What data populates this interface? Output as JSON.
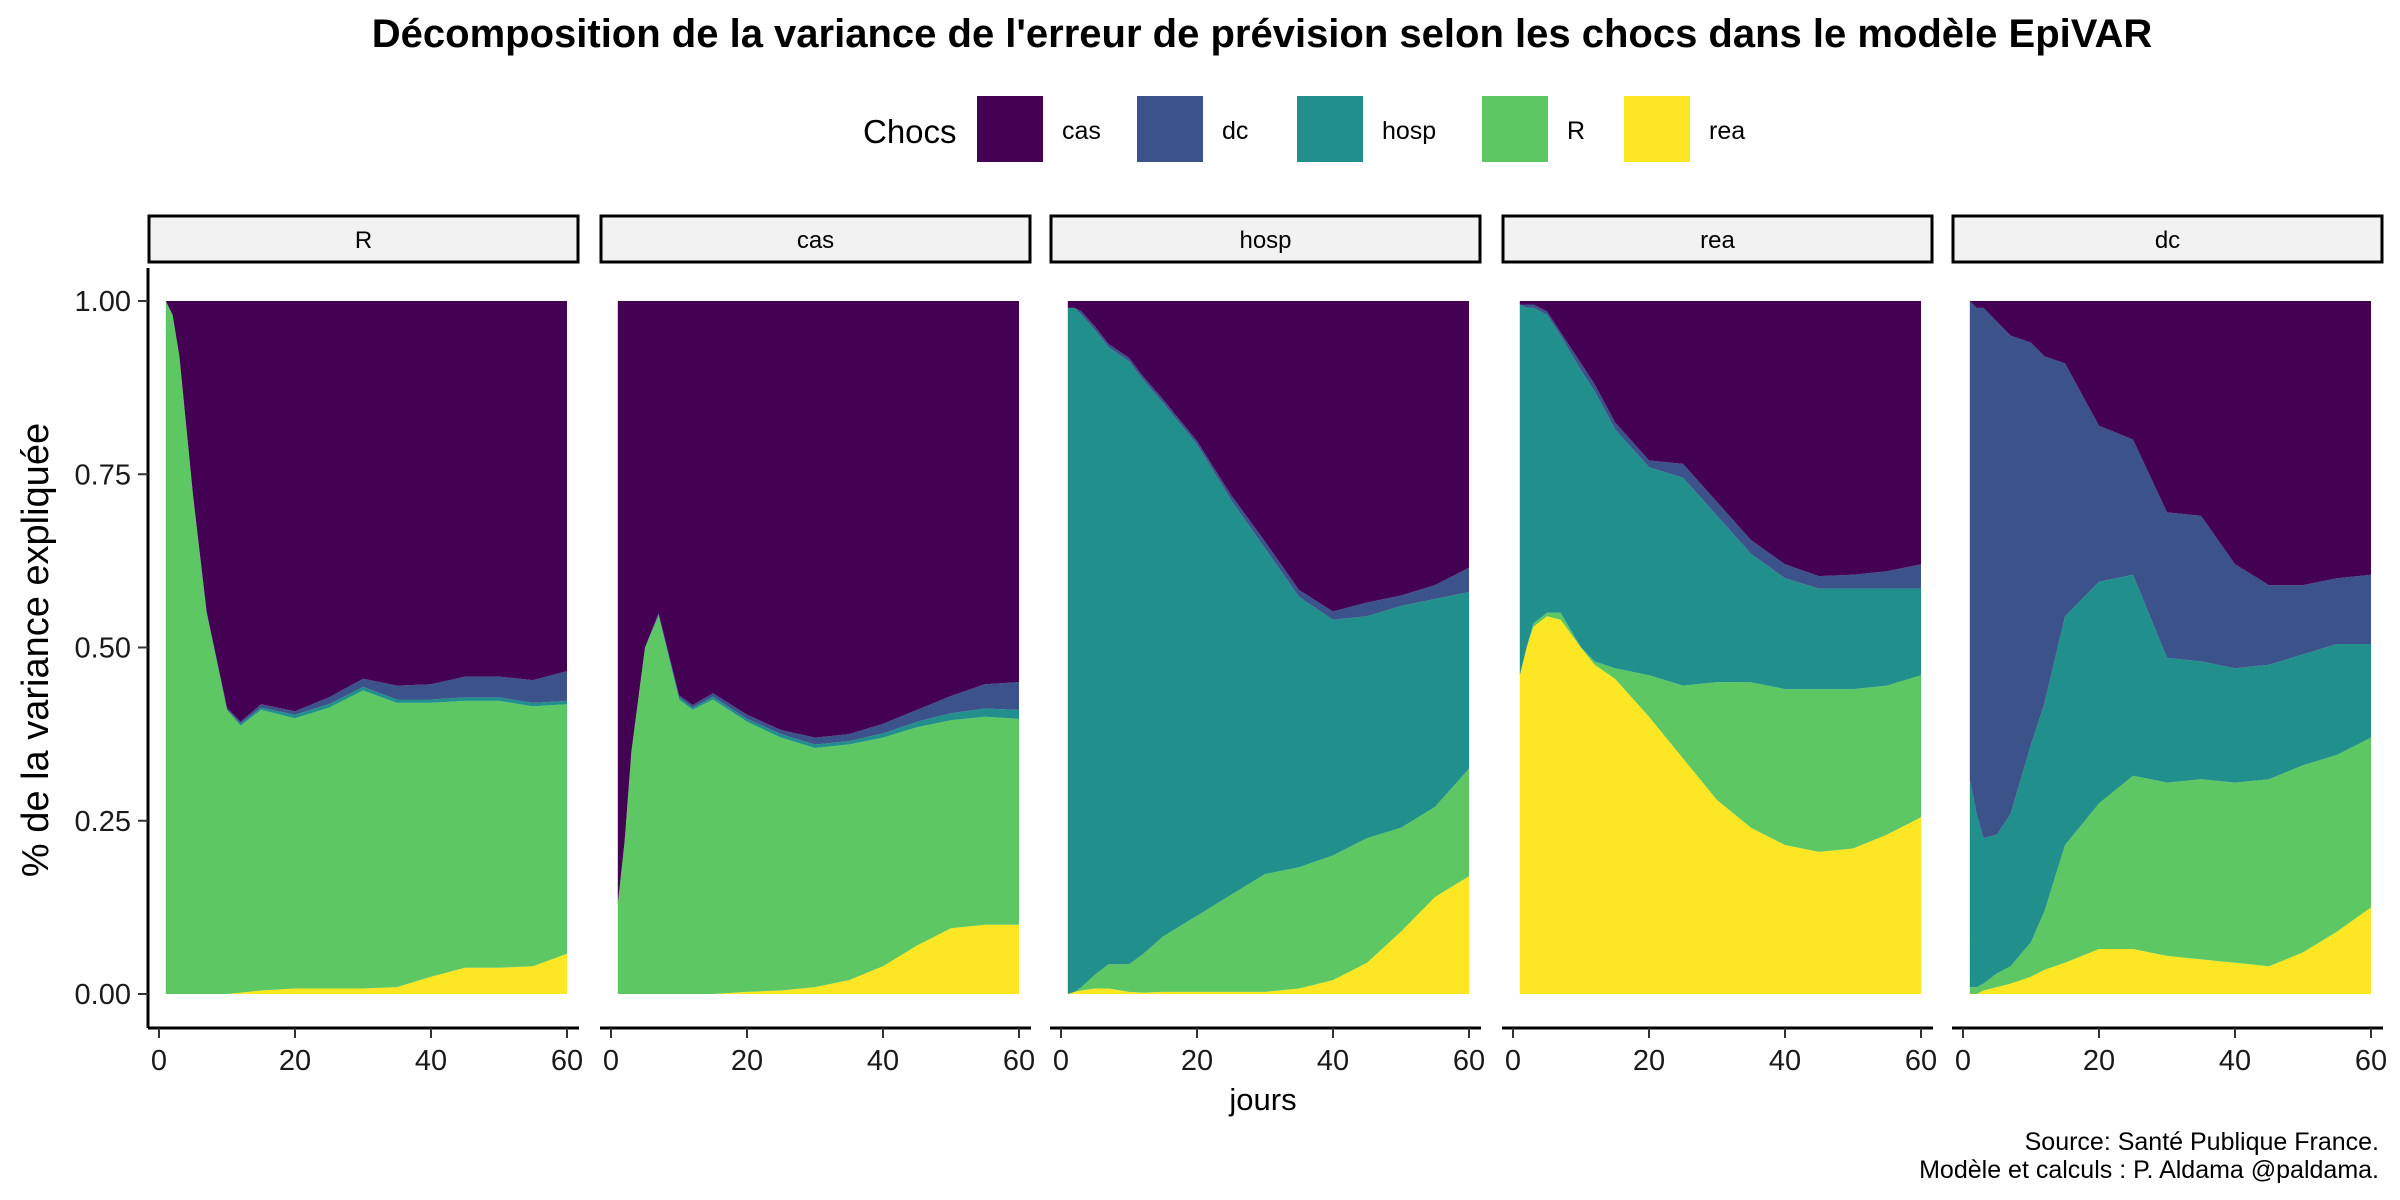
{
  "chart_data": {
    "type": "area",
    "title": "Décomposition de la variance de l'erreur de prévision selon les chocs dans le modèle EpiVAR",
    "xlabel": "jours",
    "ylabel": "% de la variance expliquée",
    "xlim": [
      0,
      60
    ],
    "ylim": [
      0,
      1
    ],
    "x_ticks": [
      0,
      20,
      40,
      60
    ],
    "y_ticks": [
      0,
      0.25,
      0.5,
      0.75,
      1.0
    ],
    "y_tick_labels": [
      "0.00",
      "0.25",
      "0.50",
      "0.75",
      "1.00"
    ],
    "stacked": true,
    "legend": {
      "title": "Chocs",
      "position": "top",
      "entries": [
        "cas",
        "dc",
        "hosp",
        "R",
        "rea"
      ]
    },
    "series_colors": {
      "cas": "#440154",
      "dc": "#3B528B",
      "hosp": "#21908C",
      "R": "#5DC863",
      "rea": "#FDE725"
    },
    "stack_order_bottom_to_top": [
      "rea",
      "R",
      "hosp",
      "dc",
      "cas"
    ],
    "x": [
      1,
      2,
      3,
      5,
      7,
      10,
      12,
      15,
      20,
      25,
      30,
      35,
      40,
      45,
      50,
      55,
      60
    ],
    "panels": [
      {
        "label": "R",
        "series": [
          {
            "name": "rea",
            "values": [
              0,
              0,
              0,
              0,
              0,
              0,
              0.002,
              0.005,
              0.008,
              0.008,
              0.008,
              0.01,
              0.025,
              0.038,
              0.038,
              0.04,
              0.058
            ]
          },
          {
            "name": "R",
            "values": [
              1.0,
              0.98,
              0.92,
              0.72,
              0.55,
              0.41,
              0.385,
              0.405,
              0.39,
              0.405,
              0.43,
              0.41,
              0.395,
              0.385,
              0.385,
              0.375,
              0.36
            ]
          },
          {
            "name": "hosp",
            "values": [
              0,
              0,
              0,
              0,
              0,
              0,
              0.003,
              0.003,
              0.005,
              0.005,
              0.005,
              0.005,
              0.005,
              0.005,
              0.005,
              0.005,
              0.005
            ]
          },
          {
            "name": "dc",
            "values": [
              0,
              0,
              0,
              0,
              0.002,
              0.003,
              0.003,
              0.005,
              0.005,
              0.01,
              0.012,
              0.02,
              0.022,
              0.03,
              0.03,
              0.033,
              0.043
            ]
          },
          {
            "name": "cas",
            "values": [
              0,
              0.02,
              0.08,
              0.28,
              0.448,
              0.587,
              0.607,
              0.582,
              0.592,
              0.572,
              0.545,
              0.555,
              0.553,
              0.542,
              0.542,
              0.547,
              0.534
            ]
          }
        ]
      },
      {
        "label": "cas",
        "series": [
          {
            "name": "rea",
            "values": [
              0,
              0,
              0,
              0,
              0,
              0,
              0,
              0,
              0.003,
              0.005,
              0.01,
              0.02,
              0.04,
              0.07,
              0.095,
              0.1,
              0.1
            ]
          },
          {
            "name": "R",
            "values": [
              0.13,
              0.22,
              0.35,
              0.5,
              0.545,
              0.425,
              0.41,
              0.425,
              0.39,
              0.365,
              0.345,
              0.34,
              0.33,
              0.315,
              0.3,
              0.3,
              0.297
            ]
          },
          {
            "name": "hosp",
            "values": [
              0,
              0,
              0,
              0,
              0.002,
              0.003,
              0.003,
              0.004,
              0.004,
              0.005,
              0.005,
              0.005,
              0.006,
              0.008,
              0.01,
              0.012,
              0.013
            ]
          },
          {
            "name": "dc",
            "values": [
              0,
              0,
              0,
              0,
              0.002,
              0.003,
              0.004,
              0.005,
              0.006,
              0.006,
              0.01,
              0.01,
              0.014,
              0.017,
              0.025,
              0.035,
              0.04
            ]
          },
          {
            "name": "cas",
            "values": [
              0.87,
              0.78,
              0.65,
              0.5,
              0.451,
              0.569,
              0.583,
              0.566,
              0.597,
              0.619,
              0.63,
              0.625,
              0.61,
              0.59,
              0.57,
              0.553,
              0.55
            ]
          }
        ]
      },
      {
        "label": "hosp",
        "series": [
          {
            "name": "rea",
            "values": [
              0,
              0.003,
              0.005,
              0.008,
              0.008,
              0.003,
              0.002,
              0.003,
              0.003,
              0.003,
              0.003,
              0.008,
              0.02,
              0.045,
              0.09,
              0.14,
              0.17
            ]
          },
          {
            "name": "R",
            "values": [
              0,
              0,
              0.005,
              0.02,
              0.035,
              0.04,
              0.055,
              0.08,
              0.11,
              0.14,
              0.17,
              0.175,
              0.18,
              0.18,
              0.15,
              0.13,
              0.155
            ]
          },
          {
            "name": "hosp",
            "values": [
              0.99,
              0.987,
              0.97,
              0.93,
              0.89,
              0.87,
              0.83,
              0.77,
              0.68,
              0.57,
              0.47,
              0.39,
              0.34,
              0.32,
              0.32,
              0.3,
              0.255
            ]
          },
          {
            "name": "dc",
            "values": [
              0,
              0,
              0.005,
              0.005,
              0.005,
              0.005,
              0.005,
              0.005,
              0.005,
              0.007,
              0.01,
              0.01,
              0.012,
              0.02,
              0.015,
              0.02,
              0.035
            ]
          },
          {
            "name": "cas",
            "values": [
              0.01,
              0.01,
              0.015,
              0.037,
              0.062,
              0.082,
              0.108,
              0.142,
              0.202,
              0.28,
              0.347,
              0.417,
              0.448,
              0.435,
              0.425,
              0.41,
              0.385
            ]
          }
        ]
      },
      {
        "label": "rea",
        "series": [
          {
            "name": "rea",
            "values": [
              0.46,
              0.5,
              0.53,
              0.545,
              0.54,
              0.5,
              0.475,
              0.455,
              0.4,
              0.34,
              0.28,
              0.24,
              0.215,
              0.205,
              0.21,
              0.23,
              0.255
            ]
          },
          {
            "name": "R",
            "values": [
              0,
              0,
              0.005,
              0.005,
              0.01,
              0.0,
              0.005,
              0.015,
              0.06,
              0.105,
              0.17,
              0.21,
              0.225,
              0.235,
              0.23,
              0.215,
              0.205
            ]
          },
          {
            "name": "hosp",
            "values": [
              0.535,
              0.49,
              0.455,
              0.43,
              0.4,
              0.4,
              0.39,
              0.345,
              0.3,
              0.3,
              0.24,
              0.185,
              0.16,
              0.145,
              0.145,
              0.14,
              0.125
            ]
          },
          {
            "name": "dc",
            "values": [
              0,
              0.005,
              0.005,
              0.005,
              0.005,
              0.01,
              0.01,
              0.01,
              0.01,
              0.02,
              0.02,
              0.02,
              0.02,
              0.018,
              0.02,
              0.025,
              0.035
            ]
          },
          {
            "name": "cas",
            "values": [
              0.005,
              0.005,
              0.005,
              0.015,
              0.045,
              0.09,
              0.12,
              0.175,
              0.23,
              0.235,
              0.29,
              0.345,
              0.38,
              0.397,
              0.395,
              0.39,
              0.38
            ]
          }
        ]
      },
      {
        "label": "dc",
        "series": [
          {
            "name": "rea",
            "values": [
              0,
              0,
              0.005,
              0.01,
              0.015,
              0.025,
              0.035,
              0.045,
              0.065,
              0.065,
              0.055,
              0.05,
              0.045,
              0.04,
              0.06,
              0.09,
              0.125
            ]
          },
          {
            "name": "R",
            "values": [
              0.01,
              0.01,
              0.01,
              0.02,
              0.025,
              0.05,
              0.085,
              0.17,
              0.21,
              0.25,
              0.25,
              0.26,
              0.26,
              0.27,
              0.27,
              0.255,
              0.245
            ]
          },
          {
            "name": "hosp",
            "values": [
              0.3,
              0.25,
              0.21,
              0.2,
              0.22,
              0.285,
              0.3,
              0.33,
              0.32,
              0.29,
              0.18,
              0.17,
              0.165,
              0.165,
              0.16,
              0.16,
              0.135
            ]
          },
          {
            "name": "dc",
            "values": [
              0.69,
              0.73,
              0.765,
              0.74,
              0.69,
              0.58,
              0.5,
              0.365,
              0.225,
              0.195,
              0.21,
              0.21,
              0.15,
              0.115,
              0.1,
              0.095,
              0.1
            ]
          },
          {
            "name": "cas",
            "values": [
              0,
              0.01,
              0.01,
              0.03,
              0.05,
              0.06,
              0.08,
              0.09,
              0.18,
              0.2,
              0.305,
              0.31,
              0.38,
              0.41,
              0.41,
              0.4,
              0.395
            ]
          }
        ]
      }
    ]
  },
  "source_note": {
    "line1": "Source: Santé Publique France.",
    "line2": "Modèle et calculs : P. Aldama @paldama."
  }
}
